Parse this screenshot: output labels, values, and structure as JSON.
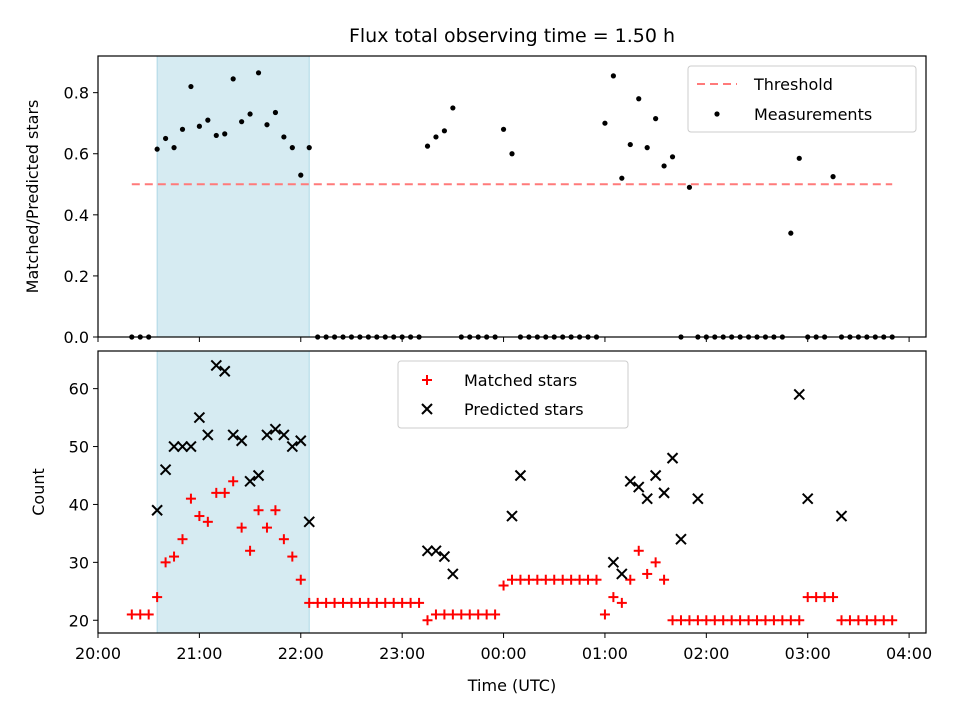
{
  "title": "Flux total observing time = 1.50 h",
  "colors": {
    "threshold": "#ff7a7a",
    "measurement": "#000000",
    "matched": "#ff0000",
    "predicted": "#000000",
    "window": "#add8e6"
  },
  "chart_data": [
    {
      "type": "scatter",
      "panel": "top",
      "title": "Flux total observing time = 1.50 h",
      "xlabel": "",
      "ylabel": "Matched/Predicted stars",
      "xlim": [
        "20:00",
        "04:10"
      ],
      "ylim": [
        0,
        0.92
      ],
      "yticks": [
        "0.0",
        "0.2",
        "0.4",
        "0.6",
        "0.8"
      ],
      "ytick_values": [
        0,
        0.2,
        0.4,
        0.6,
        0.8
      ],
      "xticks": [
        "20:00",
        "21:00",
        "22:00",
        "23:00",
        "00:00",
        "01:00",
        "02:00",
        "03:00",
        "04:00"
      ],
      "shaded_window": {
        "start": "20:35",
        "end": "22:05"
      },
      "legend_position": "upper right",
      "threshold": {
        "name": "Threshold",
        "value": 0.5,
        "x_start": "20:20",
        "x_end": "03:50",
        "style": "dashed"
      },
      "series": [
        {
          "name": "Measurements",
          "x": [
            "20:20",
            "20:25",
            "20:30",
            "20:35",
            "20:40",
            "20:45",
            "20:50",
            "20:55",
            "21:00",
            "21:05",
            "21:10",
            "21:15",
            "21:20",
            "21:25",
            "21:30",
            "21:35",
            "21:40",
            "21:45",
            "21:50",
            "21:55",
            "22:00",
            "22:05",
            "22:10",
            "22:15",
            "22:20",
            "22:25",
            "22:30",
            "22:35",
            "22:40",
            "22:45",
            "22:50",
            "22:55",
            "23:00",
            "23:05",
            "23:10",
            "23:15",
            "23:20",
            "23:25",
            "23:30",
            "23:35",
            "23:40",
            "23:45",
            "23:50",
            "23:55",
            "00:00",
            "00:05",
            "00:10",
            "00:15",
            "00:20",
            "00:25",
            "00:30",
            "00:35",
            "00:40",
            "00:45",
            "00:50",
            "00:55",
            "01:00",
            "01:05",
            "01:10",
            "01:15",
            "01:20",
            "01:25",
            "01:30",
            "01:35",
            "01:40",
            "01:45",
            "01:50",
            "01:55",
            "02:00",
            "02:05",
            "02:10",
            "02:15",
            "02:20",
            "02:25",
            "02:30",
            "02:35",
            "02:40",
            "02:45",
            "02:50",
            "02:55",
            "03:00",
            "03:05",
            "03:10",
            "03:15",
            "03:20",
            "03:25",
            "03:30",
            "03:35",
            "03:40",
            "03:45",
            "03:50"
          ],
          "y": [
            0,
            0,
            0,
            0.615,
            0.65,
            0.62,
            0.68,
            0.82,
            0.69,
            0.71,
            0.66,
            0.665,
            0.845,
            0.705,
            0.73,
            0.865,
            0.695,
            0.735,
            0.655,
            0.62,
            0.53,
            0.62,
            0,
            0,
            0,
            0,
            0,
            0,
            0,
            0,
            0,
            0,
            0,
            0,
            0,
            0.625,
            0.655,
            0.675,
            0.75,
            0,
            0,
            0,
            0,
            0,
            0.68,
            0.6,
            0,
            0,
            0,
            0,
            0,
            0,
            0,
            0,
            0,
            0,
            0.7,
            0.855,
            0.52,
            0.63,
            0.78,
            0.62,
            0.715,
            0.56,
            0.59,
            0,
            0.49,
            0,
            0,
            0,
            0,
            0,
            0,
            0,
            0,
            0,
            0,
            0,
            0.34,
            0.585,
            0,
            0,
            0,
            0.525,
            0,
            0,
            0,
            0,
            0,
            0,
            0
          ]
        }
      ]
    },
    {
      "type": "scatter",
      "panel": "bottom",
      "title": "",
      "xlabel": "Time (UTC)",
      "ylabel": "Count",
      "xlim": [
        "20:00",
        "04:10"
      ],
      "ylim": [
        17.8,
        66.5
      ],
      "yticks": [
        "20",
        "30",
        "40",
        "50",
        "60"
      ],
      "ytick_values": [
        20,
        30,
        40,
        50,
        60
      ],
      "xticks": [
        "20:00",
        "21:00",
        "22:00",
        "23:00",
        "00:00",
        "01:00",
        "02:00",
        "03:00",
        "04:00"
      ],
      "shaded_window": {
        "start": "20:35",
        "end": "22:05"
      },
      "legend_position": "upper center",
      "series": [
        {
          "name": "Matched stars",
          "marker": "plus",
          "x": [
            "20:20",
            "20:25",
            "20:30",
            "20:35",
            "20:40",
            "20:45",
            "20:50",
            "20:55",
            "21:00",
            "21:05",
            "21:10",
            "21:15",
            "21:20",
            "21:25",
            "21:30",
            "21:35",
            "21:40",
            "21:45",
            "21:50",
            "21:55",
            "22:00",
            "22:05",
            "22:10",
            "22:15",
            "22:20",
            "22:25",
            "22:30",
            "22:35",
            "22:40",
            "22:45",
            "22:50",
            "22:55",
            "23:00",
            "23:05",
            "23:10",
            "23:15",
            "23:20",
            "23:25",
            "23:30",
            "23:35",
            "23:40",
            "23:45",
            "23:50",
            "23:55",
            "00:00",
            "00:05",
            "00:10",
            "00:15",
            "00:20",
            "00:25",
            "00:30",
            "00:35",
            "00:40",
            "00:45",
            "00:50",
            "00:55",
            "01:00",
            "01:05",
            "01:10",
            "01:15",
            "01:20",
            "01:25",
            "01:30",
            "01:35",
            "01:40",
            "01:45",
            "01:50",
            "01:55",
            "02:00",
            "02:05",
            "02:10",
            "02:15",
            "02:20",
            "02:25",
            "02:30",
            "02:35",
            "02:40",
            "02:45",
            "02:50",
            "02:55",
            "03:00",
            "03:05",
            "03:10",
            "03:15",
            "03:20",
            "03:25",
            "03:30",
            "03:35",
            "03:40",
            "03:45",
            "03:50"
          ],
          "y": [
            21,
            21,
            21,
            24,
            30,
            31,
            34,
            41,
            38,
            37,
            42,
            42,
            44,
            36,
            32,
            39,
            36,
            39,
            34,
            31,
            27,
            23,
            23,
            23,
            23,
            23,
            23,
            23,
            23,
            23,
            23,
            23,
            23,
            23,
            23,
            20,
            21,
            21,
            21,
            21,
            21,
            21,
            21,
            21,
            26,
            27,
            27,
            27,
            27,
            27,
            27,
            27,
            27,
            27,
            27,
            27,
            21,
            24,
            23,
            27,
            32,
            28,
            30,
            27,
            20,
            20,
            20,
            20,
            20,
            20,
            20,
            20,
            20,
            20,
            20,
            20,
            20,
            20,
            20,
            20,
            24,
            24,
            24,
            24,
            20,
            20,
            20,
            20,
            20,
            20,
            20
          ]
        },
        {
          "name": "Predicted stars",
          "marker": "x",
          "x": [
            "20:35",
            "20:40",
            "20:45",
            "20:50",
            "20:55",
            "21:00",
            "21:05",
            "21:10",
            "21:15",
            "21:20",
            "21:25",
            "21:30",
            "21:35",
            "21:40",
            "21:45",
            "21:50",
            "21:55",
            "22:00",
            "22:05",
            "23:15",
            "23:20",
            "23:25",
            "23:30",
            "00:05",
            "00:10",
            "01:05",
            "01:10",
            "01:15",
            "01:20",
            "01:25",
            "01:30",
            "01:35",
            "01:40",
            "01:45",
            "01:55",
            "02:55",
            "03:00",
            "03:20"
          ],
          "y": [
            39,
            46,
            50,
            50,
            50,
            55,
            52,
            64,
            63,
            52,
            51,
            44,
            45,
            52,
            53,
            52,
            50,
            51,
            37,
            32,
            32,
            31,
            28,
            38,
            45,
            30,
            28,
            44,
            43,
            41,
            45,
            42,
            48,
            34,
            41,
            59,
            41,
            38
          ]
        }
      ]
    }
  ]
}
